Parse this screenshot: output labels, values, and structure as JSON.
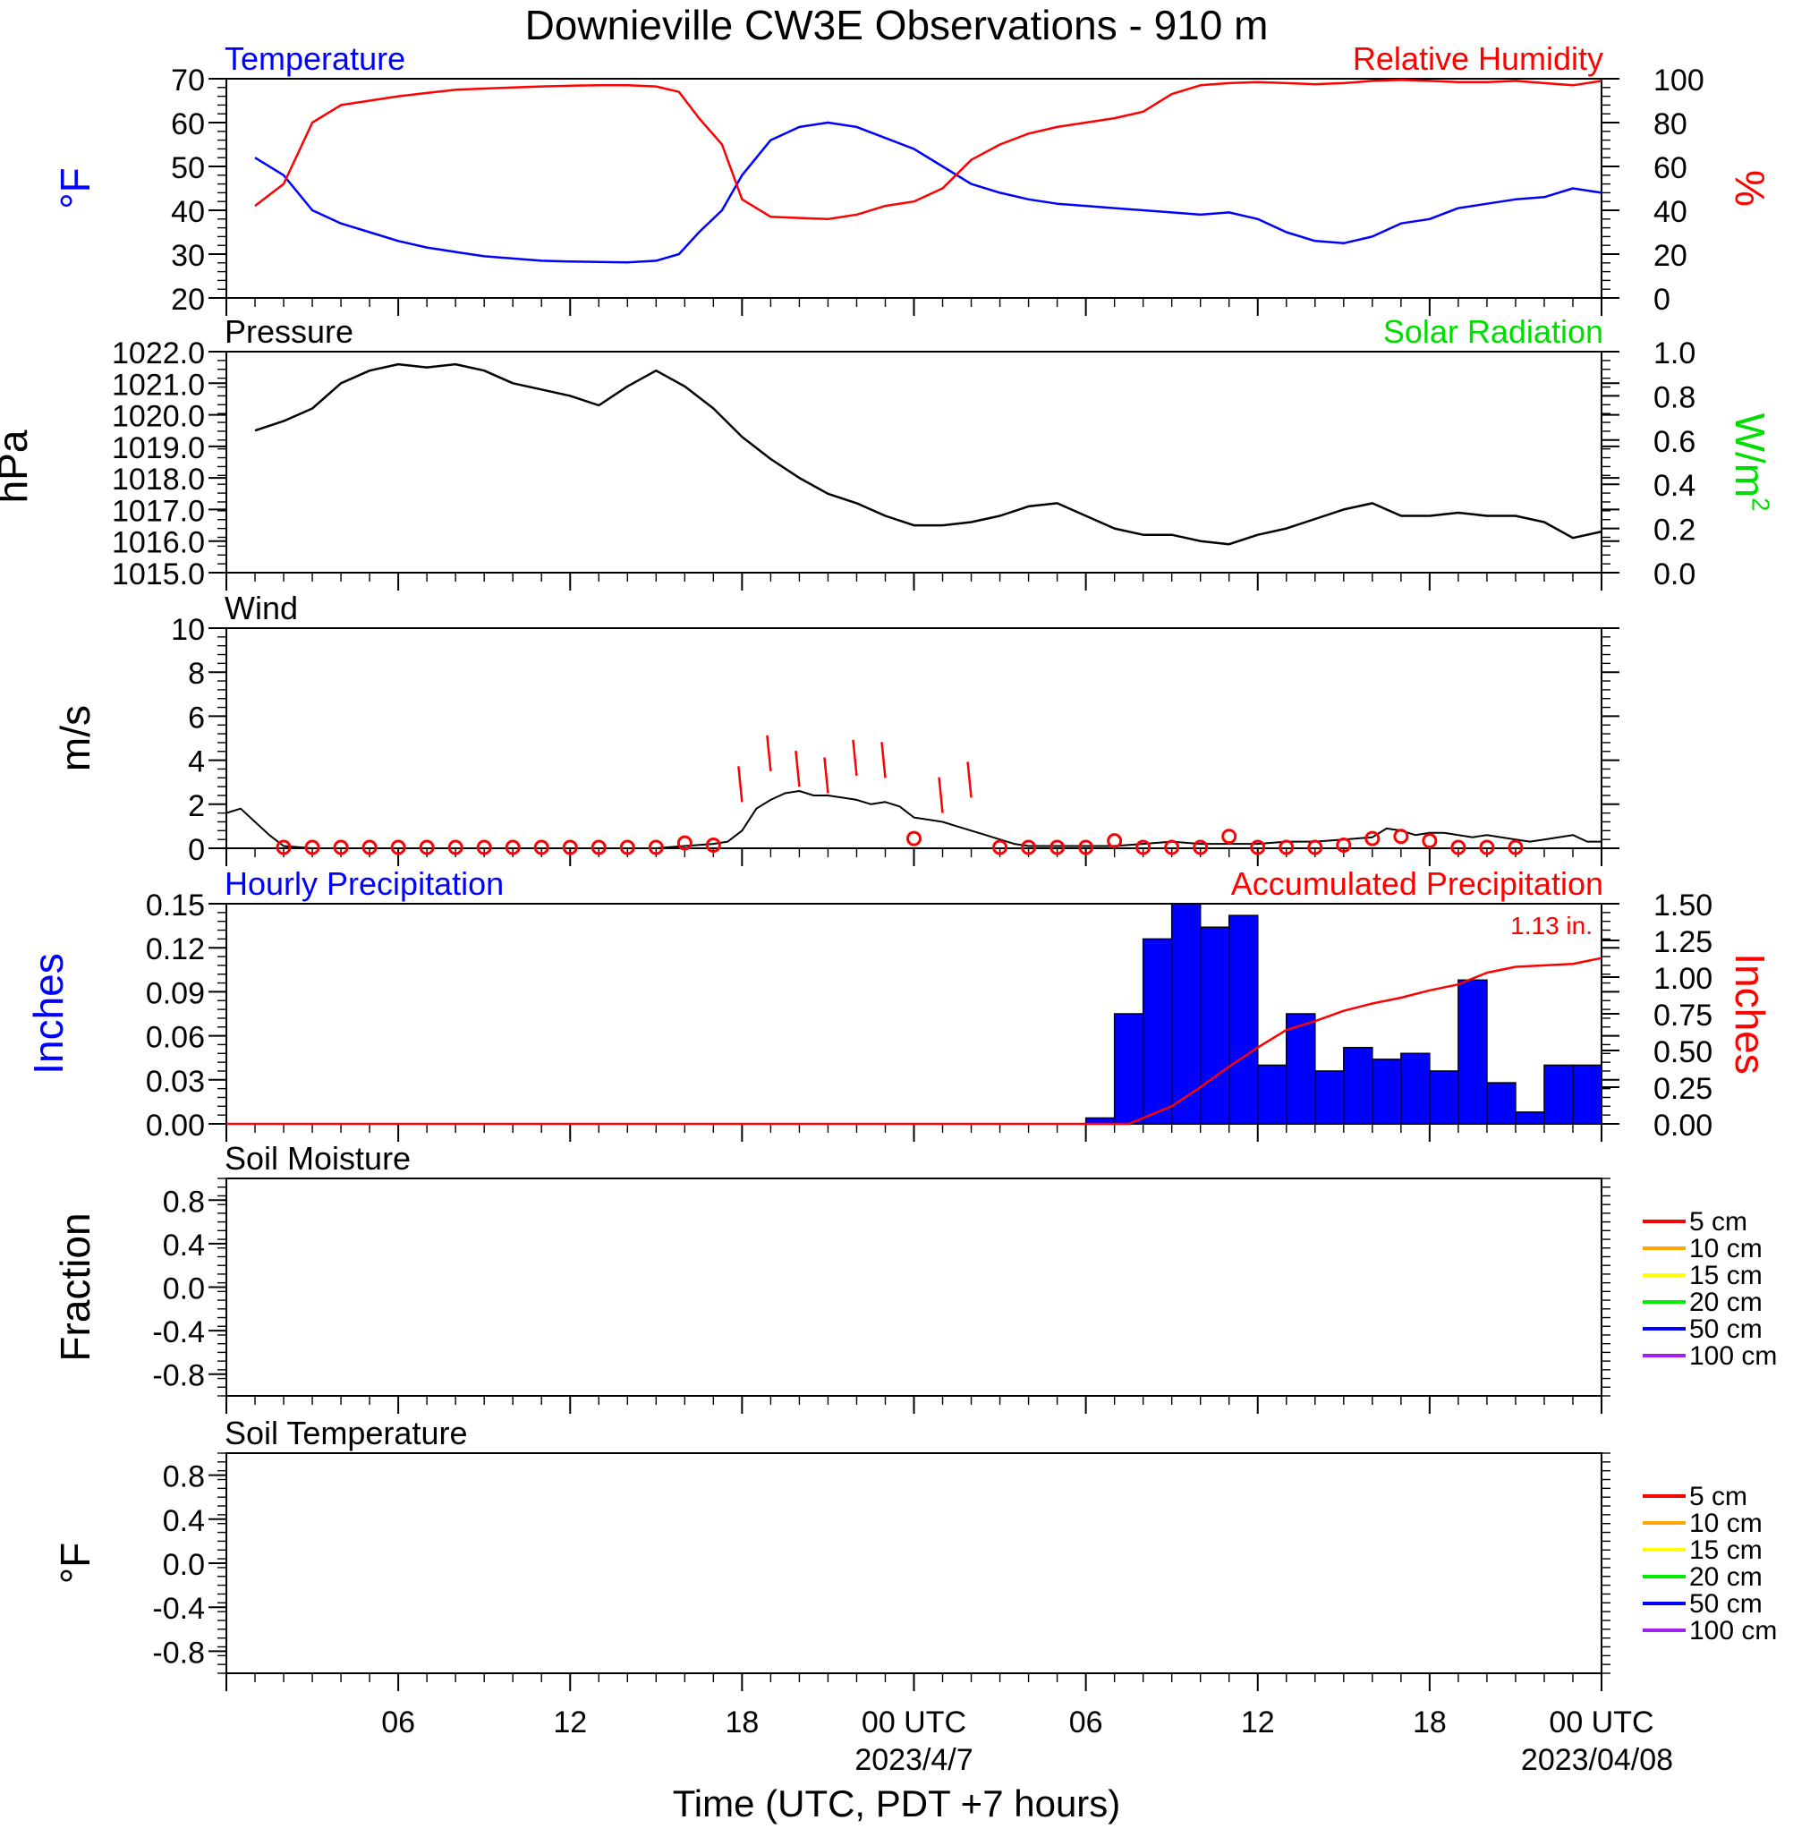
{
  "title": "Downieville CW3E Observations - 910 m",
  "xlabel": "Time (UTC, PDT +7 hours)",
  "x_ticks": [
    {
      "hour": 6,
      "label": "06",
      "sub": ""
    },
    {
      "hour": 12,
      "label": "12",
      "sub": ""
    },
    {
      "hour": 18,
      "label": "18",
      "sub": ""
    },
    {
      "hour": 24,
      "label": "00 UTC",
      "sub": "2023/4/7"
    },
    {
      "hour": 30,
      "label": "06",
      "sub": ""
    },
    {
      "hour": 36,
      "label": "12",
      "sub": ""
    },
    {
      "hour": 42,
      "label": "18",
      "sub": ""
    },
    {
      "hour": 48,
      "label": "00 UTC",
      "sub": "2023/04/08"
    }
  ],
  "colors": {
    "temperature": "#0000ff",
    "humidity": "#ff0000",
    "pressure": "#000000",
    "solar": "#00dd00",
    "wind": "#000000",
    "gust": "#ff0000",
    "hourly_precip": "#0000ff",
    "accum_precip": "#ff0000"
  },
  "chart_data": [
    {
      "id": "temperature",
      "type": "line",
      "left_title": "Temperature",
      "right_title": "Relative Humidity",
      "ylabel": "°F",
      "y2label": "%",
      "ylim": [
        20,
        70
      ],
      "y_ticks": [
        "20",
        "30",
        "40",
        "50",
        "60",
        "70"
      ],
      "y2lim": [
        0,
        100
      ],
      "y2_ticks": [
        "0",
        "20",
        "40",
        "60",
        "80",
        "100"
      ],
      "x": [
        1,
        2,
        3,
        4,
        5,
        6,
        7,
        8,
        9,
        10,
        11,
        12,
        13,
        14,
        15,
        15.8,
        16.5,
        17.3,
        18,
        19,
        20,
        21,
        22,
        23,
        24,
        25,
        26,
        27,
        28,
        29,
        30,
        31,
        32,
        33,
        34,
        35,
        36,
        37,
        38,
        39,
        40,
        41,
        42,
        43,
        44,
        45,
        46,
        47,
        48
      ],
      "series": [
        {
          "name": "Temperature",
          "axis": "left",
          "values": [
            52,
            48,
            40,
            37,
            35,
            33,
            31.5,
            30.5,
            29.5,
            29,
            28.5,
            28.3,
            28.2,
            28.1,
            28.5,
            30,
            35,
            40,
            48,
            56,
            59,
            60,
            59,
            56.5,
            54,
            50,
            46,
            44,
            42.5,
            41.5,
            41,
            40.5,
            40,
            39.5,
            39,
            39.5,
            38,
            35,
            33,
            32.5,
            34,
            37,
            38,
            40.5,
            41.5,
            42.5,
            43,
            45,
            44
          ]
        },
        {
          "name": "Relative Humidity",
          "axis": "right",
          "values": [
            42,
            52,
            80,
            88,
            90,
            92,
            93.5,
            95,
            95.5,
            96,
            96.5,
            96.8,
            97,
            97,
            96.5,
            94,
            82,
            70,
            45,
            37,
            36.5,
            36,
            38,
            42,
            44,
            50,
            63,
            70,
            75,
            78,
            80,
            82,
            85,
            93,
            97,
            98,
            98.5,
            98,
            97.5,
            98,
            99,
            99.5,
            99,
            98.5,
            98.5,
            99,
            98,
            97,
            99
          ]
        }
      ]
    },
    {
      "id": "pressure",
      "type": "line",
      "left_title": "Pressure",
      "right_title": "Solar Radiation",
      "ylabel": "hPa",
      "y2label": "W/m",
      "y2label_sup": "2",
      "ylim": [
        1015,
        1022
      ],
      "y_ticks": [
        "1015.0",
        "1016.0",
        "1017.0",
        "1018.0",
        "1019.0",
        "1020.0",
        "1021.0",
        "1022.0"
      ],
      "y2lim": [
        0,
        1
      ],
      "y2_ticks": [
        "0.0",
        "0.2",
        "0.4",
        "0.6",
        "0.8",
        "1.0"
      ],
      "x": [
        1,
        2,
        3,
        4,
        5,
        6,
        7,
        8,
        9,
        10,
        11,
        12,
        13,
        14,
        15,
        16,
        17,
        18,
        19,
        20,
        21,
        22,
        23,
        24,
        25,
        26,
        27,
        28,
        29,
        30,
        31,
        32,
        33,
        34,
        35,
        36,
        37,
        38,
        39,
        40,
        41,
        42,
        43,
        44,
        45,
        46,
        47,
        48
      ],
      "series": [
        {
          "name": "Pressure",
          "values": [
            1019.5,
            1019.8,
            1020.2,
            1021.0,
            1021.4,
            1021.6,
            1021.5,
            1021.6,
            1021.4,
            1021.0,
            1020.8,
            1020.6,
            1020.3,
            1020.9,
            1021.4,
            1020.9,
            1020.2,
            1019.3,
            1018.6,
            1018.0,
            1017.5,
            1017.2,
            1016.8,
            1016.5,
            1016.5,
            1016.6,
            1016.8,
            1017.1,
            1017.2,
            1016.8,
            1016.4,
            1016.2,
            1016.2,
            1016.0,
            1015.9,
            1016.2,
            1016.4,
            1016.7,
            1017.0,
            1017.2,
            1016.8,
            1016.8,
            1016.9,
            1016.8,
            1016.8,
            1016.6,
            1016.1,
            1016.3
          ]
        }
      ]
    },
    {
      "id": "wind",
      "type": "line",
      "left_title": "Wind",
      "ylabel": "m/s",
      "ylim": [
        0,
        10
      ],
      "y_ticks": [
        "0",
        "2",
        "4",
        "6",
        "8",
        "10"
      ],
      "x": [
        0,
        0.5,
        1,
        1.5,
        2,
        3,
        4,
        5,
        6,
        7,
        8,
        9,
        10,
        11,
        12,
        13,
        14,
        15,
        16,
        17,
        17.5,
        18,
        18.5,
        19,
        19.5,
        20,
        20.5,
        21,
        21.5,
        22,
        22.5,
        23,
        23.5,
        24,
        24.5,
        25,
        25.5,
        26,
        26.5,
        27,
        27.5,
        28,
        29,
        30,
        31,
        32,
        33,
        34,
        35,
        36,
        37,
        38,
        39,
        40,
        40.5,
        41,
        41.5,
        42,
        42.5,
        43,
        43.5,
        44,
        44.5,
        45,
        45.5,
        46,
        46.5,
        47,
        47.5,
        48
      ],
      "series": [
        {
          "name": "Wind speed",
          "values": [
            1.6,
            1.8,
            1.2,
            0.6,
            0.1,
            0,
            0,
            0,
            0,
            0,
            0,
            0,
            0,
            0,
            0,
            0,
            0,
            0,
            0.1,
            0.2,
            0.3,
            0.8,
            1.8,
            2.2,
            2.5,
            2.6,
            2.4,
            2.4,
            2.3,
            2.2,
            2.0,
            2.1,
            1.9,
            1.4,
            1.3,
            1.2,
            1.0,
            0.8,
            0.6,
            0.4,
            0.2,
            0.1,
            0.1,
            0.1,
            0.1,
            0.2,
            0.3,
            0.2,
            0.2,
            0.2,
            0.3,
            0.3,
            0.4,
            0.5,
            0.9,
            0.8,
            0.6,
            0.7,
            0.7,
            0.6,
            0.5,
            0.6,
            0.5,
            0.4,
            0.3,
            0.4,
            0.5,
            0.6,
            0.3,
            0.3
          ]
        }
      ],
      "observations": [
        {
          "x": 2,
          "speed": 0
        },
        {
          "x": 3,
          "speed": 0
        },
        {
          "x": 4,
          "speed": 0
        },
        {
          "x": 5,
          "speed": 0
        },
        {
          "x": 6,
          "speed": 0
        },
        {
          "x": 7,
          "speed": 0
        },
        {
          "x": 8,
          "speed": 0
        },
        {
          "x": 9,
          "speed": 0
        },
        {
          "x": 10,
          "speed": 0
        },
        {
          "x": 11,
          "speed": 0
        },
        {
          "x": 12,
          "speed": 0
        },
        {
          "x": 13,
          "speed": 0
        },
        {
          "x": 14,
          "speed": 0
        },
        {
          "x": 15,
          "speed": 0
        },
        {
          "x": 16,
          "speed": 0.2
        },
        {
          "x": 17,
          "speed": 0.1
        },
        {
          "x": 18,
          "speed": 2.1
        },
        {
          "x": 19,
          "speed": 3.5
        },
        {
          "x": 20,
          "speed": 2.8
        },
        {
          "x": 21,
          "speed": 2.5
        },
        {
          "x": 22,
          "speed": 3.3
        },
        {
          "x": 23,
          "speed": 3.2
        },
        {
          "x": 24,
          "speed": 0.4
        },
        {
          "x": 25,
          "speed": 1.6
        },
        {
          "x": 26,
          "speed": 2.3
        },
        {
          "x": 27,
          "speed": 0
        },
        {
          "x": 28,
          "speed": 0
        },
        {
          "x": 29,
          "speed": 0
        },
        {
          "x": 30,
          "speed": 0
        },
        {
          "x": 31,
          "speed": 0.3
        },
        {
          "x": 32,
          "speed": 0
        },
        {
          "x": 33,
          "speed": 0
        },
        {
          "x": 34,
          "speed": 0
        },
        {
          "x": 35,
          "speed": 0.5
        },
        {
          "x": 36,
          "speed": 0
        },
        {
          "x": 37,
          "speed": 0
        },
        {
          "x": 38,
          "speed": 0
        },
        {
          "x": 39,
          "speed": 0.1
        },
        {
          "x": 40,
          "speed": 0.4
        },
        {
          "x": 41,
          "speed": 0.5
        },
        {
          "x": 42,
          "speed": 0.3
        },
        {
          "x": 43,
          "speed": 0
        },
        {
          "x": 44,
          "speed": 0
        },
        {
          "x": 45,
          "speed": 0
        }
      ]
    },
    {
      "id": "precip",
      "type": "bar",
      "left_title": "Hourly Precipitation",
      "right_title": "Accumulated Precipitation",
      "annotation": "1.13 in.",
      "ylabel": "Inches",
      "y2label": "Inches",
      "ylim": [
        0,
        0.15
      ],
      "y_ticks": [
        "0.00",
        "0.03",
        "0.06",
        "0.09",
        "0.12",
        "0.15"
      ],
      "y2lim": [
        0,
        1.5
      ],
      "y2_ticks": [
        "0.00",
        "0.25",
        "0.50",
        "0.75",
        "1.00",
        "1.25",
        "1.50"
      ],
      "categories": [
        31,
        32,
        33,
        34,
        35,
        36,
        37,
        38,
        39,
        40,
        41,
        42,
        43,
        44,
        45,
        46,
        47,
        48
      ],
      "series": [
        {
          "name": "Hourly Precipitation",
          "axis": "left",
          "values": [
            0.004,
            0.075,
            0.126,
            0.15,
            0.134,
            0.142,
            0.04,
            0.075,
            0.036,
            0.052,
            0.044,
            0.048,
            0.036,
            0.098,
            0.028,
            0.008,
            0.04,
            0.04
          ]
        },
        {
          "name": "Accumulated Precipitation",
          "axis": "right",
          "x": [
            0,
            31.5,
            32,
            33,
            34,
            35,
            36,
            37,
            38,
            39,
            40,
            41,
            42,
            43,
            44,
            45,
            46,
            47,
            48
          ],
          "values": [
            0,
            0,
            0.04,
            0.12,
            0.25,
            0.39,
            0.52,
            0.64,
            0.7,
            0.77,
            0.82,
            0.86,
            0.91,
            0.95,
            1.03,
            1.07,
            1.08,
            1.09,
            1.13
          ]
        }
      ]
    },
    {
      "id": "soil_moisture",
      "type": "line",
      "left_title": "Soil Moisture",
      "ylabel": "Fraction",
      "ylim": [
        -1,
        1
      ],
      "y_ticks": [
        "-0.8",
        "-0.4",
        "0.0",
        "0.4",
        "0.8"
      ],
      "y_tick_values": [
        -0.8,
        -0.4,
        0,
        0.4,
        0.8
      ],
      "series": []
    },
    {
      "id": "soil_temperature",
      "type": "line",
      "left_title": "Soil Temperature",
      "ylabel": "°F",
      "ylim": [
        -1,
        1
      ],
      "y_ticks": [
        "-0.8",
        "-0.4",
        "0.0",
        "0.4",
        "0.8"
      ],
      "y_tick_values": [
        -0.8,
        -0.4,
        0,
        0.4,
        0.8
      ],
      "series": []
    }
  ],
  "soil_legend": [
    {
      "label": "5 cm",
      "color": "#ff0000"
    },
    {
      "label": "10 cm",
      "color": "#ffa500"
    },
    {
      "label": "15 cm",
      "color": "#ffff00"
    },
    {
      "label": "20 cm",
      "color": "#00ee00"
    },
    {
      "label": "50 cm",
      "color": "#0000ff"
    },
    {
      "label": "100 cm",
      "color": "#a020f0"
    }
  ]
}
